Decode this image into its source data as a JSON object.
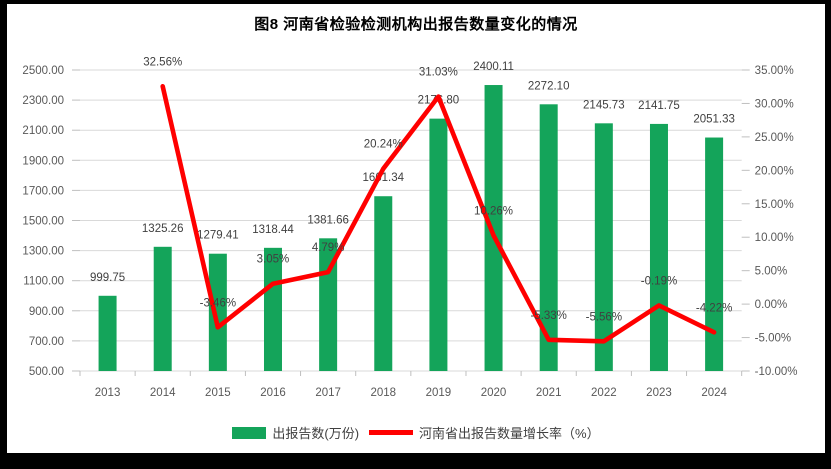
{
  "frame": {
    "background_color": "#000000",
    "canvas_color": "#ffffff"
  },
  "chart_data": {
    "type": "bar",
    "subtype": "bar+line combo, dual axis",
    "title": "图8  河南省检验检测机构出报告数量变化的情况",
    "categories": [
      "2013",
      "2014",
      "2015",
      "2016",
      "2017",
      "2018",
      "2019",
      "2020",
      "2021",
      "2022",
      "2023",
      "2024"
    ],
    "series": [
      {
        "name": "出报告数(万份)",
        "type": "bar",
        "axis": "left",
        "color": "#14A45A",
        "values": [
          999.75,
          1325.26,
          1279.41,
          1318.44,
          1381.66,
          1661.34,
          2176.8,
          2400.11,
          2272.1,
          2145.73,
          2141.75,
          2051.33
        ]
      },
      {
        "name": "河南省出报告数量增长率（%）",
        "type": "line",
        "axis": "right",
        "color": "#FF0000",
        "values": [
          null,
          32.56,
          -3.46,
          3.05,
          4.79,
          20.24,
          31.03,
          10.26,
          -5.33,
          -5.56,
          -0.19,
          -4.22
        ]
      }
    ],
    "left_axis": {
      "min": 500,
      "max": 2500,
      "step": 200,
      "decimals": 2,
      "suffix": ""
    },
    "right_axis": {
      "min": -10,
      "max": 35,
      "step": 5,
      "decimals": 2,
      "suffix": "%"
    },
    "grid": true,
    "legend_position": "bottom",
    "data_labels": true,
    "colors": {
      "grid": "#D9D9D9",
      "tick": "#BFBFBF",
      "axis_text": "#595959",
      "data_label_text": "#404040",
      "title_text": "#000000"
    }
  }
}
